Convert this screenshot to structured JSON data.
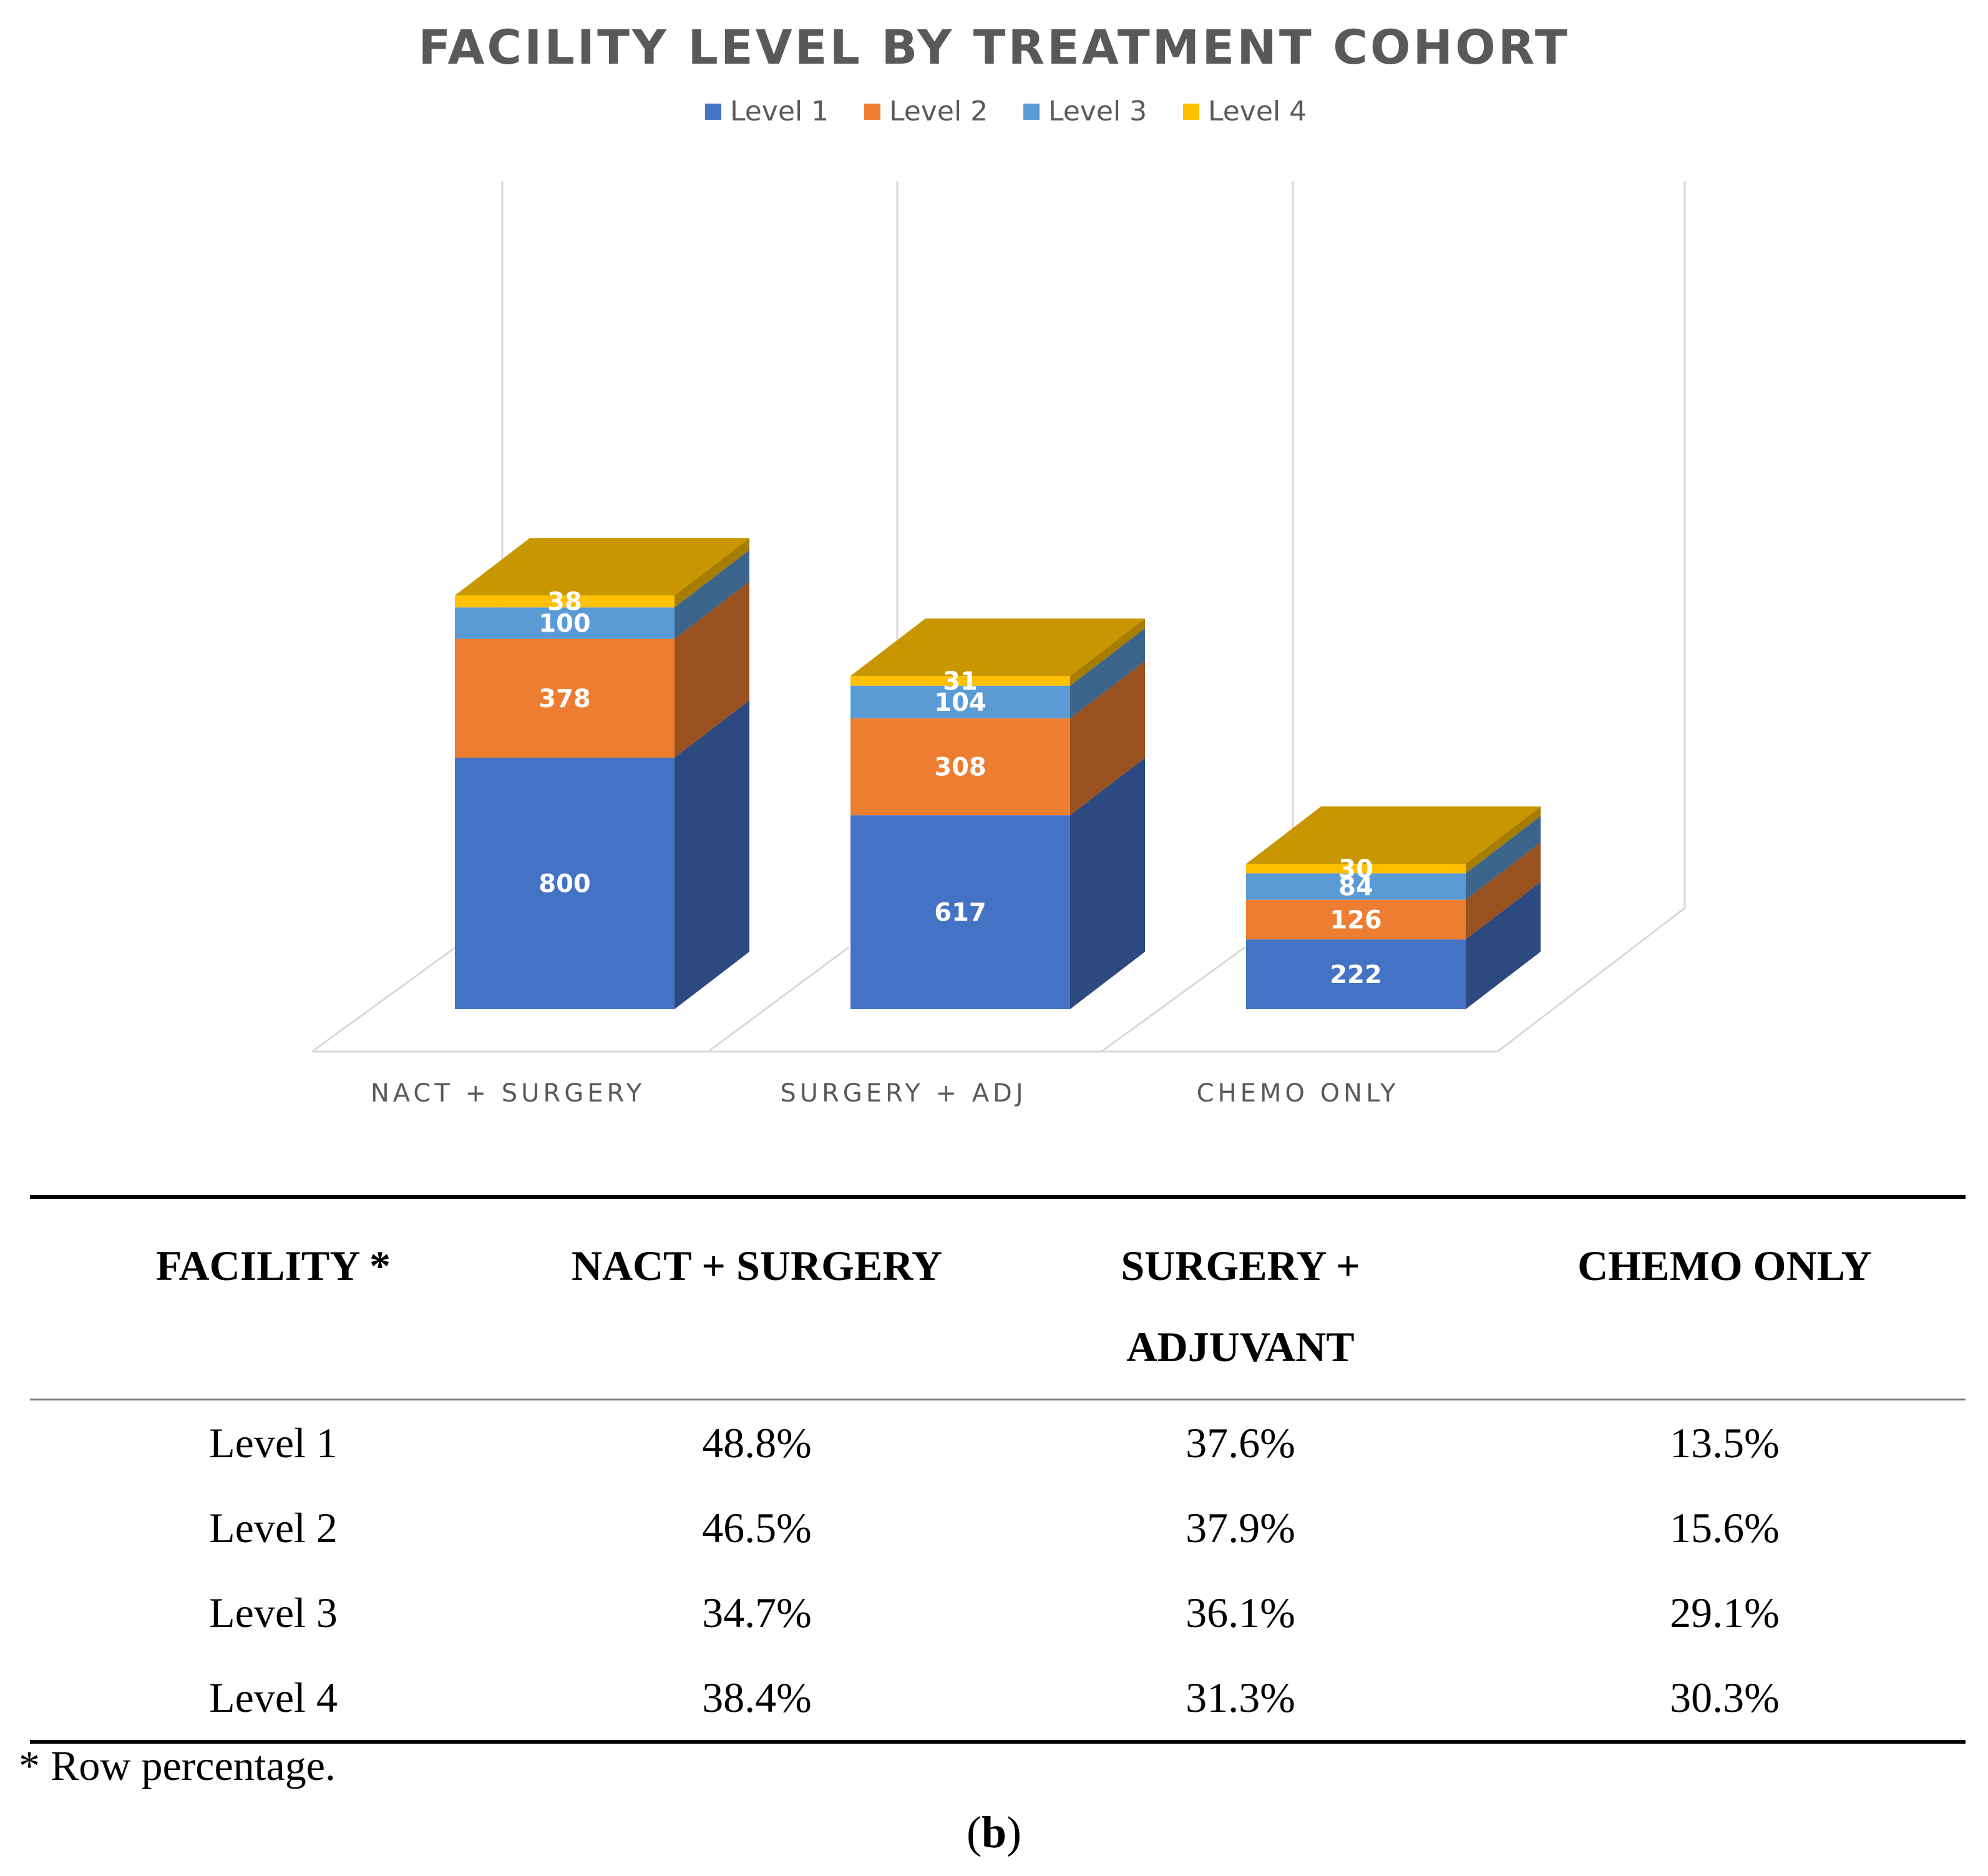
{
  "chart_data": {
    "type": "bar",
    "stacked": true,
    "three_d": true,
    "title": "FACILITY LEVEL BY TREATMENT COHORT",
    "legend_position": "top",
    "categories": [
      "NACT + SURGERY",
      "SURGERY + ADJ",
      "CHEMO ONLY"
    ],
    "series": [
      {
        "name": "Level 1",
        "values": [
          800,
          617,
          222
        ],
        "color": "#4472C4"
      },
      {
        "name": "Level 2",
        "values": [
          378,
          308,
          126
        ],
        "color": "#ED7D31"
      },
      {
        "name": "Level 3",
        "values": [
          100,
          104,
          84
        ],
        "color": "#5B9BD5"
      },
      {
        "name": "Level 4",
        "values": [
          38,
          31,
          30
        ],
        "color": "#FFC000"
      }
    ],
    "grid": true
  },
  "table": {
    "headers": [
      "FACILITY *",
      "NACT + SURGERY",
      "SURGERY +",
      "ADJUVANT",
      "CHEMO ONLY"
    ],
    "rows": [
      [
        "Level 1",
        "48.8%",
        "37.6%",
        "13.5%"
      ],
      [
        "Level 2",
        "46.5%",
        "37.9%",
        "15.6%"
      ],
      [
        "Level 3",
        "34.7%",
        "36.1%",
        "29.1%"
      ],
      [
        "Level 4",
        "38.4%",
        "31.3%",
        "30.3%"
      ]
    ]
  },
  "footnote": "* Row percentage.",
  "panel": {
    "open": "(",
    "letter": "b",
    "close": ")"
  }
}
